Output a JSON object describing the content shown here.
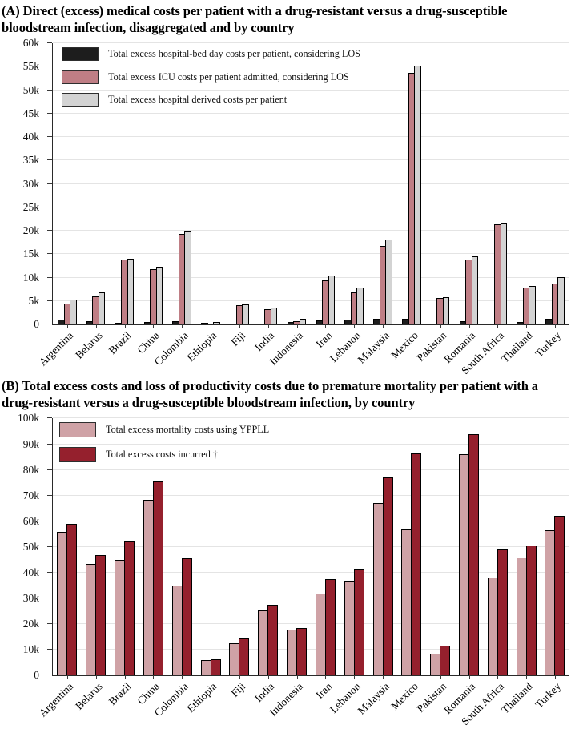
{
  "figure": {
    "panel_a_title": "(A) Direct (excess) medical costs per patient with a drug-resistant versus a drug-susceptible bloodstream infection, disaggregated and by country",
    "panel_b_title": "(B) Total excess costs and loss of productivity costs due to premature mortality per patient with a drug-resistant versus a drug-susceptible bloodstream infection, by country"
  },
  "chart_data": [
    {
      "type": "bar",
      "title": "(A) Direct (excess) medical costs per patient with a drug-resistant versus a drug-susceptible bloodstream infection, disaggregated and by country",
      "categories": [
        "Argentina",
        "Belarus",
        "Brazil",
        "China",
        "Colombia",
        "Ethiopia",
        "Fiji",
        "India",
        "Indonesia",
        "Iran",
        "Lebanon",
        "Malaysia",
        "Mexico",
        "Pakistan",
        "Romania",
        "South Africa",
        "Thailand",
        "Turkey"
      ],
      "series": [
        {
          "name": "Total excess hospital-bed day costs per patient, considering LOS",
          "color": "#1d1d1d",
          "values": [
            1000,
            800,
            300,
            550,
            650,
            350,
            100,
            200,
            550,
            900,
            1100,
            1200,
            1300,
            200,
            700,
            200,
            500,
            1300
          ]
        },
        {
          "name": "Total excess ICU costs per patient admitted, considering LOS",
          "color": "#bf7e85",
          "values": [
            4500,
            6100,
            13900,
            11900,
            19400,
            250,
            4100,
            3300,
            700,
            9400,
            6900,
            16800,
            53700,
            5700,
            13900,
            21400,
            7900,
            8700
          ]
        },
        {
          "name": "Total excess hospital derived costs per patient",
          "color": "#d3d3d3",
          "values": [
            5400,
            6900,
            14100,
            12400,
            20000,
            600,
            4300,
            3600,
            1200,
            10400,
            7900,
            18200,
            55200,
            5800,
            14600,
            21600,
            8300,
            10100
          ]
        }
      ],
      "ylim": [
        0,
        60000
      ],
      "ytick_step": 5000,
      "ytick_labels": [
        "0",
        "5k",
        "10k",
        "15k",
        "20k",
        "25k",
        "30k",
        "35k",
        "40k",
        "45k",
        "50k",
        "55k",
        "60k"
      ],
      "xlabel": "",
      "ylabel": "",
      "grid": true,
      "legend_position": "top-left"
    },
    {
      "type": "bar",
      "title": "(B) Total excess costs and loss of productivity costs due to premature mortality per patient with a drug-resistant versus a drug-susceptible bloodstream infection, by country",
      "categories": [
        "Argentina",
        "Belarus",
        "Brazil",
        "China",
        "Colombia",
        "Ethiopia",
        "Fiji",
        "India",
        "Indonesia",
        "Iran",
        "Lebanon",
        "Malaysia",
        "Mexico",
        "Pakistan",
        "Romania",
        "South Africa",
        "Thailand",
        "Turkey"
      ],
      "series": [
        {
          "name": "Total excess mortality costs using YPPLL",
          "color": "#cfa2a6",
          "values": [
            56000,
            43500,
            45000,
            68500,
            35000,
            6000,
            12500,
            25500,
            18000,
            32000,
            37000,
            67000,
            57000,
            8500,
            86000,
            38000,
            46000,
            56500
          ]
        },
        {
          "name": "Total excess costs incurred †",
          "color": "#95202d",
          "values": [
            59000,
            47000,
            52500,
            75500,
            45500,
            6500,
            14500,
            27500,
            18500,
            37500,
            41500,
            77000,
            86500,
            11800,
            94000,
            49500,
            50500,
            62000
          ]
        }
      ],
      "ylim": [
        0,
        100000
      ],
      "ytick_step": 10000,
      "ytick_labels": [
        "0",
        "10k",
        "20k",
        "30k",
        "40k",
        "50k",
        "60k",
        "70k",
        "80k",
        "90k",
        "100k"
      ],
      "xlabel": "",
      "ylabel": "",
      "grid": true,
      "legend_position": "top-left"
    }
  ]
}
